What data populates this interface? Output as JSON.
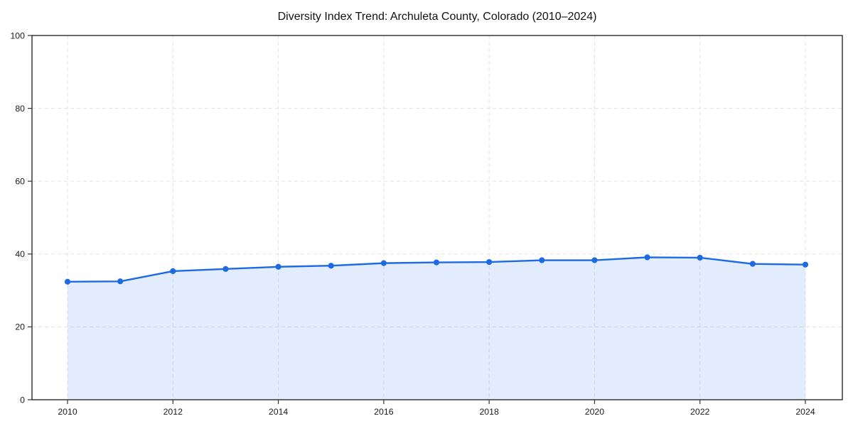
{
  "page": {
    "background": "#ffffff"
  },
  "chart_data": {
    "type": "area",
    "title": "Diversity Index Trend: Archuleta County, Colorado (2010–2024)",
    "x": [
      2010,
      2011,
      2012,
      2013,
      2014,
      2015,
      2016,
      2017,
      2018,
      2019,
      2020,
      2021,
      2022,
      2023,
      2024
    ],
    "values": [
      32.4,
      32.5,
      35.3,
      35.9,
      36.5,
      36.8,
      37.5,
      37.7,
      37.8,
      38.3,
      38.3,
      39.1,
      39.0,
      37.3,
      37.1
    ],
    "xlabel": "",
    "ylabel": "",
    "ylim": [
      0,
      100
    ],
    "yticks": [
      0,
      20,
      40,
      60,
      80,
      100
    ],
    "xticks": [
      2010,
      2012,
      2014,
      2016,
      2018,
      2020,
      2022,
      2024
    ],
    "grid": true,
    "grid_style": "dashed",
    "legend": false,
    "marker": "circle",
    "colors": {
      "line": "#1c6be4",
      "fill": "rgba(28,107,228,0.13)",
      "grid": "#e3e3e3",
      "spine": "#1a1a1a",
      "tick": "#333333",
      "tick_text": "#1a1a1a",
      "title_text": "#111111"
    }
  }
}
